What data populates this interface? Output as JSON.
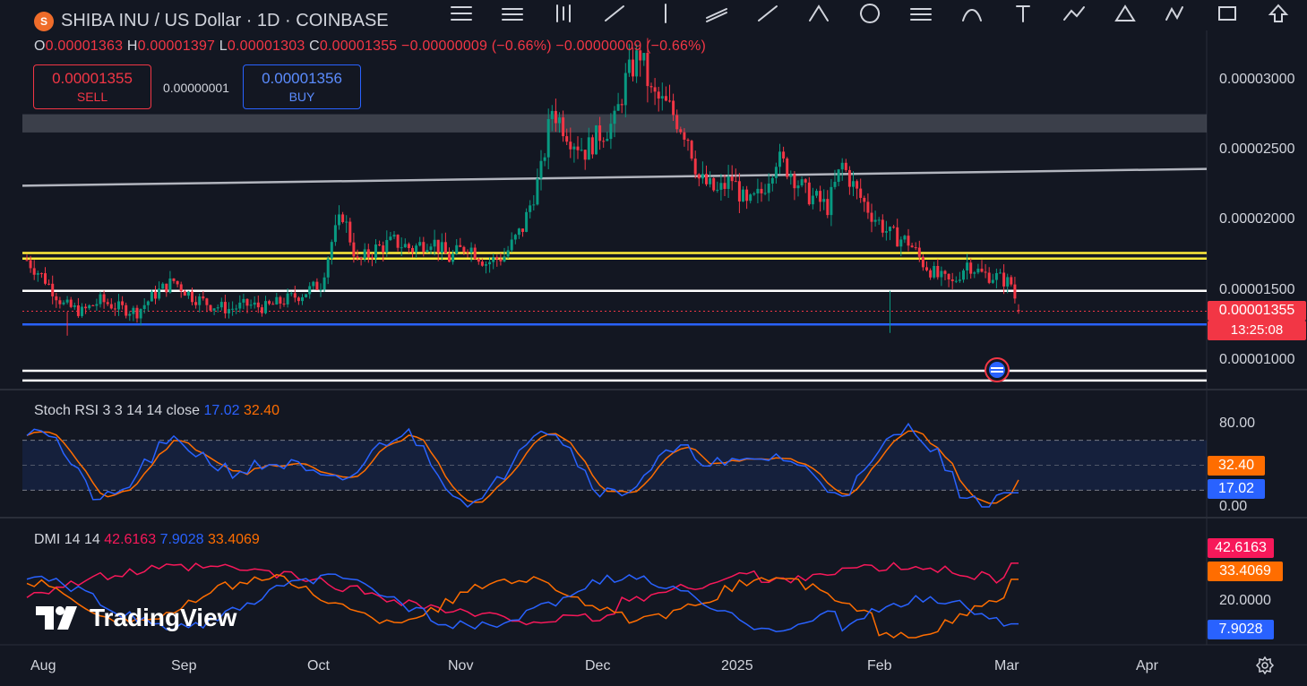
{
  "header": {
    "title": "SHIBA INU / US Dollar · 1D · COINBASE",
    "ohlc": {
      "o_label": "O",
      "o": "0.00001363",
      "h_label": "H",
      "h": "0.00001397",
      "l_label": "L",
      "l": "0.00001303",
      "c_label": "C",
      "c": "0.00001355",
      "change1": "−0.00000009 (−0.66%)",
      "change2": "−0.00000009 (−0.66%)"
    }
  },
  "trade": {
    "sell_price": "0.00001355",
    "sell_label": "SELL",
    "spread": "0.00000001",
    "buy_price": "0.00001356",
    "buy_label": "BUY"
  },
  "price_axis": {
    "ticks": [
      "0.00003000",
      "0.00002500",
      "0.00002000",
      "0.00001500",
      "0.00001000"
    ],
    "current_price": "0.00001355",
    "countdown": "13:25:08"
  },
  "stoch": {
    "title": "Stoch RSI 3 3 14 14 close",
    "k_value": "17.02",
    "d_value": "32.40",
    "ticks": [
      "80.00",
      "0.00"
    ],
    "k_color": "#2962ff",
    "d_color": "#ff6d00"
  },
  "dmi": {
    "title": "DMI 14 14",
    "adx": "42.6163",
    "plus_di": "7.9028",
    "minus_di": "33.4069",
    "tick": "20.0000",
    "adx_color": "#f7185a",
    "plus_color": "#2962ff",
    "minus_color": "#ff6d00"
  },
  "time_axis": [
    "Aug",
    "Sep",
    "Oct",
    "Nov",
    "Dec",
    "2025",
    "Feb",
    "Mar",
    "Apr"
  ],
  "branding": {
    "logo_text": "TradingView"
  },
  "toolbar": {
    "icons": [
      "trend-line-tools-icon",
      "horizontal-lines-icon",
      "candles-icon",
      "ray-icon",
      "vertical-line-icon",
      "parallel-channel-icon",
      "line-icon",
      "pitchfork-icon",
      "circle-icon",
      "fib-icon",
      "brush-icon",
      "text-icon",
      "path-icon",
      "triangle-icon",
      "pattern-icon",
      "shape-icon",
      "arrow-up-icon"
    ]
  },
  "colors": {
    "background": "#131722",
    "up": "#089981",
    "down": "#f23645",
    "support_blue": "#2962ff",
    "resistance_yellow": "#ffeb3b"
  },
  "chart_data": {
    "type": "candlestick",
    "symbol": "SHIBA INU / US Dollar",
    "timeframe": "1D",
    "exchange": "COINBASE",
    "y_ticks": [
      1e-05,
      1.5e-05,
      2e-05,
      2.5e-05,
      3e-05
    ],
    "x_ticks": [
      "Aug",
      "Sep",
      "Oct",
      "Nov",
      "Dec",
      "2025",
      "Feb",
      "Mar",
      "Apr"
    ],
    "close_path": [
      [
        0,
        1.72e-05
      ],
      [
        5,
        1.58e-05
      ],
      [
        10,
        1.4e-05
      ],
      [
        15,
        1.35e-05
      ],
      [
        20,
        1.43e-05
      ],
      [
        25,
        1.38e-05
      ],
      [
        30,
        1.35e-05
      ],
      [
        35,
        1.48e-05
      ],
      [
        40,
        1.57e-05
      ],
      [
        45,
        1.46e-05
      ],
      [
        50,
        1.4e-05
      ],
      [
        55,
        1.37e-05
      ],
      [
        60,
        1.4e-05
      ],
      [
        65,
        1.38e-05
      ],
      [
        70,
        1.43e-05
      ],
      [
        75,
        1.48e-05
      ],
      [
        80,
        1.55e-05
      ],
      [
        83,
        1.85e-05
      ],
      [
        86,
        2.05e-05
      ],
      [
        90,
        1.7e-05
      ],
      [
        95,
        1.8e-05
      ],
      [
        100,
        1.85e-05
      ],
      [
        105,
        1.8e-05
      ],
      [
        110,
        1.87e-05
      ],
      [
        115,
        1.73e-05
      ],
      [
        120,
        1.83e-05
      ],
      [
        125,
        1.7e-05
      ],
      [
        130,
        1.75e-05
      ],
      [
        135,
        1.95e-05
      ],
      [
        140,
        2.35e-05
      ],
      [
        143,
        2.8e-05
      ],
      [
        148,
        2.6e-05
      ],
      [
        152,
        2.5e-05
      ],
      [
        156,
        2.62e-05
      ],
      [
        160,
        2.7e-05
      ],
      [
        163,
        3e-05
      ],
      [
        167,
        3.2e-05
      ],
      [
        170,
        2.9e-05
      ],
      [
        175,
        2.8e-05
      ],
      [
        180,
        2.6e-05
      ],
      [
        183,
        2.3e-05
      ],
      [
        188,
        2.2e-05
      ],
      [
        192,
        2.3e-05
      ],
      [
        196,
        2.1e-05
      ],
      [
        200,
        2.2e-05
      ],
      [
        204,
        2.45e-05
      ],
      [
        208,
        2.35e-05
      ],
      [
        212,
        2.2e-05
      ],
      [
        218,
        2.1e-05
      ],
      [
        222,
        2.4e-05
      ],
      [
        226,
        2.2e-05
      ],
      [
        230,
        2.05e-05
      ],
      [
        235,
        1.9e-05
      ],
      [
        240,
        1.85e-05
      ],
      [
        244,
        1.7e-05
      ],
      [
        248,
        1.6e-05
      ],
      [
        252,
        1.55e-05
      ],
      [
        256,
        1.7e-05
      ],
      [
        260,
        1.62e-05
      ],
      [
        264,
        1.6e-05
      ],
      [
        268,
        1.55e-05
      ],
      [
        270,
        1.355e-05
      ]
    ],
    "horizontal_levels": [
      {
        "price": 1.77e-05,
        "color": "#ffeb3b"
      },
      {
        "price": 1.73e-05,
        "color": "#ffeb3b"
      },
      {
        "price": 1.5e-05,
        "color": "#ffffff"
      },
      {
        "price": 1.26e-05,
        "color": "#2962ff"
      },
      {
        "price": 9.3e-06,
        "color": "#ffffff"
      },
      {
        "price": 8.6e-06,
        "color": "#ffffff"
      }
    ],
    "zone": {
      "from": 2.63e-05,
      "to": 2.76e-05
    },
    "trendline": {
      "start": [
        0,
        2.25e-05
      ],
      "end": [
        270,
        2.37e-05
      ]
    },
    "stoch_rsi": {
      "k": 17.02,
      "d": 32.4,
      "ylim": [
        0,
        100
      ],
      "bands": [
        20,
        80
      ]
    },
    "dmi": {
      "adx": 42.6163,
      "plus_di": 7.9028,
      "minus_di": 33.4069
    }
  }
}
